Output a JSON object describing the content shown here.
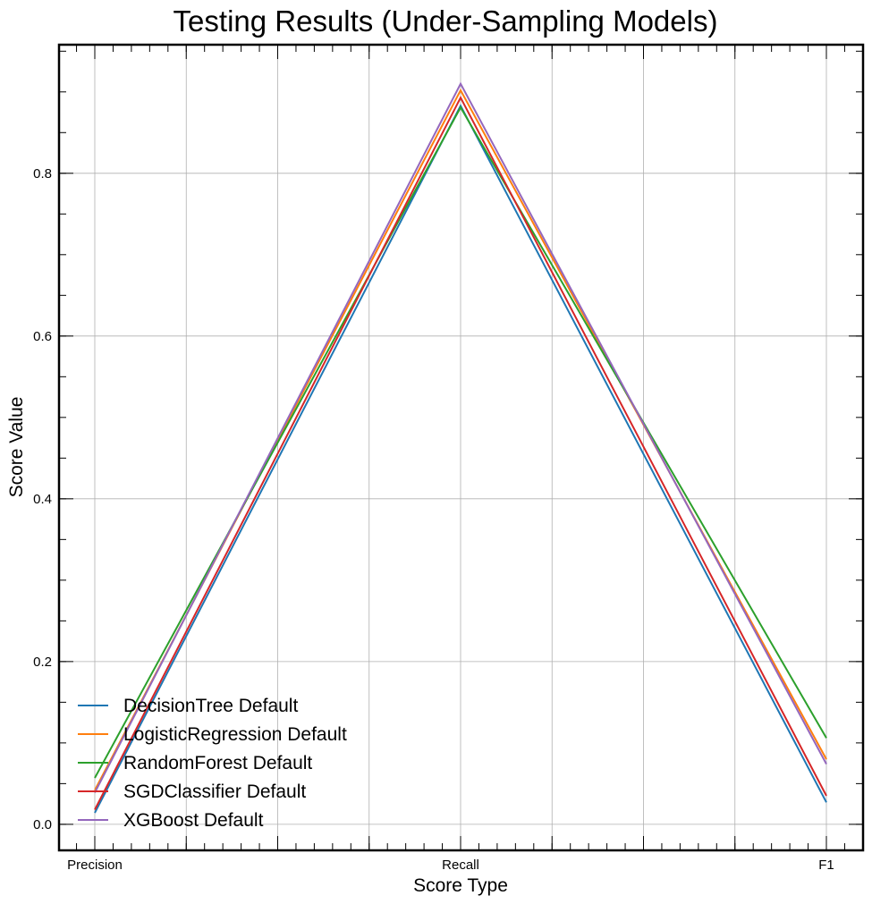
{
  "chart_data": {
    "type": "line",
    "title": "Testing Results (Under-Sampling Models)",
    "xlabel": "Score Type",
    "ylabel": "Score Value",
    "categories": [
      "Precision",
      "Recall",
      "F1"
    ],
    "ylim": [
      -0.032,
      0.958
    ],
    "yticks": [
      "0.0",
      "0.2",
      "0.4",
      "0.6",
      "0.8"
    ],
    "grid": true,
    "legend_position": "lower-left",
    "series": [
      {
        "name": "DecisionTree Default",
        "color": "#1f77b4",
        "values": [
          0.014,
          0.883,
          0.027
        ]
      },
      {
        "name": "LogisticRegression Default",
        "color": "#ff7f0e",
        "values": [
          0.042,
          0.902,
          0.08
        ]
      },
      {
        "name": "RandomForest Default",
        "color": "#2ca02c",
        "values": [
          0.057,
          0.881,
          0.106
        ]
      },
      {
        "name": "SGDClassifier Default",
        "color": "#d62728",
        "values": [
          0.018,
          0.893,
          0.035
        ]
      },
      {
        "name": "XGBoost Default",
        "color": "#9467bd",
        "values": [
          0.039,
          0.91,
          0.074
        ]
      }
    ]
  }
}
